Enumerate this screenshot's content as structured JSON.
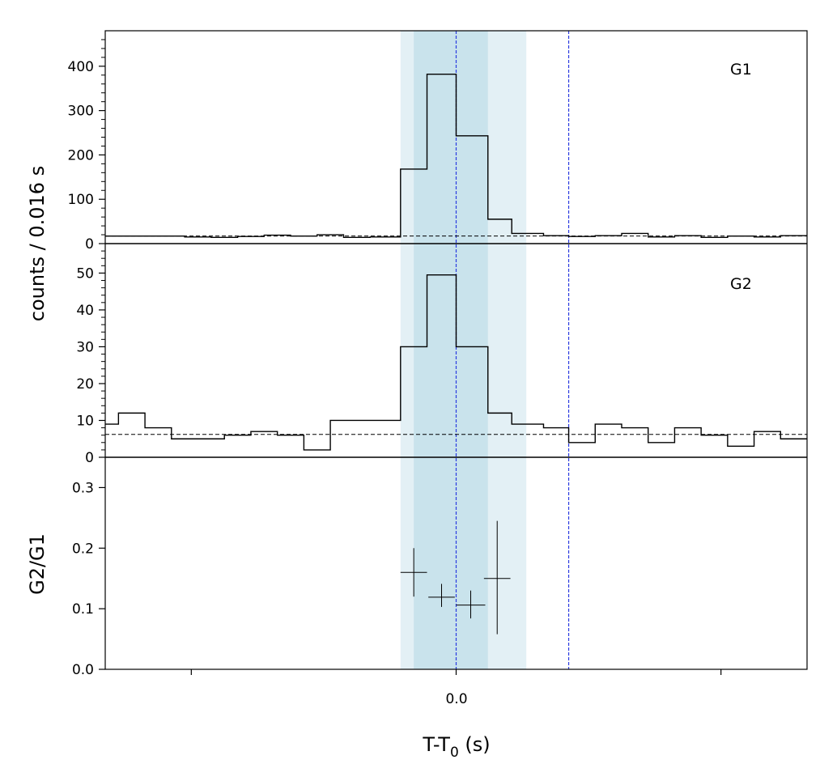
{
  "chart_data": {
    "type": "line",
    "x_label": "T-T",
    "x_label_sub": "0",
    "x_label_suffix": " (s)",
    "y_label_counts": "counts /  0.016 s",
    "y_label_ratio": "G2/G1",
    "x_range": [
      -0.265,
      0.265
    ],
    "x_tick_label": "0.0",
    "shaded_regions": [
      {
        "x0": -0.042,
        "x1": 0.053,
        "color": "#e3f0f5"
      },
      {
        "x0": -0.032,
        "x1": 0.024,
        "color": "#c9e3ec"
      }
    ],
    "vlines": [
      {
        "x": 0.0,
        "color": "#2b3be0"
      },
      {
        "x": 0.085,
        "color": "#2b3be0"
      }
    ],
    "panels": [
      {
        "label": "G1",
        "ylim": [
          0,
          480
        ],
        "yticks": [
          0,
          100,
          200,
          300,
          400
        ],
        "minor_step": 20,
        "background": 17,
        "steps": {
          "edges": [
            -0.265,
            -0.245,
            -0.225,
            -0.205,
            -0.185,
            -0.165,
            -0.145,
            -0.125,
            -0.105,
            -0.085,
            -0.065,
            -0.042,
            -0.022,
            0.0,
            0.024,
            0.042,
            0.066,
            0.085,
            0.105,
            0.125,
            0.145,
            0.165,
            0.185,
            0.205,
            0.225,
            0.245,
            0.265
          ],
          "values": [
            17,
            17,
            17,
            15,
            14,
            16,
            19,
            17,
            20,
            14,
            15,
            168,
            382,
            243,
            55,
            23,
            18,
            16,
            18,
            23,
            15,
            18,
            14,
            17,
            15,
            18
          ]
        }
      },
      {
        "label": "G2",
        "ylim": [
          0,
          58
        ],
        "yticks": [
          0,
          10,
          20,
          30,
          40,
          50
        ],
        "minor_step": 2,
        "background": 6.2,
        "steps": {
          "edges": [
            -0.265,
            -0.255,
            -0.235,
            -0.215,
            -0.195,
            -0.175,
            -0.155,
            -0.135,
            -0.115,
            -0.095,
            -0.075,
            -0.042,
            -0.022,
            0.0,
            0.024,
            0.042,
            0.066,
            0.085,
            0.105,
            0.125,
            0.145,
            0.165,
            0.185,
            0.205,
            0.225,
            0.245,
            0.265
          ],
          "values": [
            9,
            12,
            8,
            5,
            5,
            6,
            7,
            6,
            2,
            10,
            10,
            30,
            49.5,
            30,
            12,
            9,
            8,
            4,
            9,
            8,
            4,
            8,
            6,
            3,
            7,
            5
          ]
        }
      },
      {
        "label": "",
        "ylim": [
          0,
          0.35
        ],
        "yticks": [
          0.0,
          0.1,
          0.2,
          0.3
        ],
        "ytick_labels": [
          "0.0",
          "0.1",
          "0.2",
          "0.3"
        ],
        "points": [
          {
            "x": -0.032,
            "y": 0.16,
            "xerr": 0.01,
            "yerr_lo": 0.04,
            "yerr_hi": 0.04
          },
          {
            "x": -0.011,
            "y": 0.119,
            "xerr": 0.01,
            "yerr_lo": 0.016,
            "yerr_hi": 0.022
          },
          {
            "x": 0.011,
            "y": 0.106,
            "xerr": 0.011,
            "yerr_lo": 0.022,
            "yerr_hi": 0.024
          },
          {
            "x": 0.031,
            "y": 0.15,
            "xerr": 0.01,
            "yerr_lo": 0.092,
            "yerr_hi": 0.095
          }
        ]
      }
    ]
  }
}
